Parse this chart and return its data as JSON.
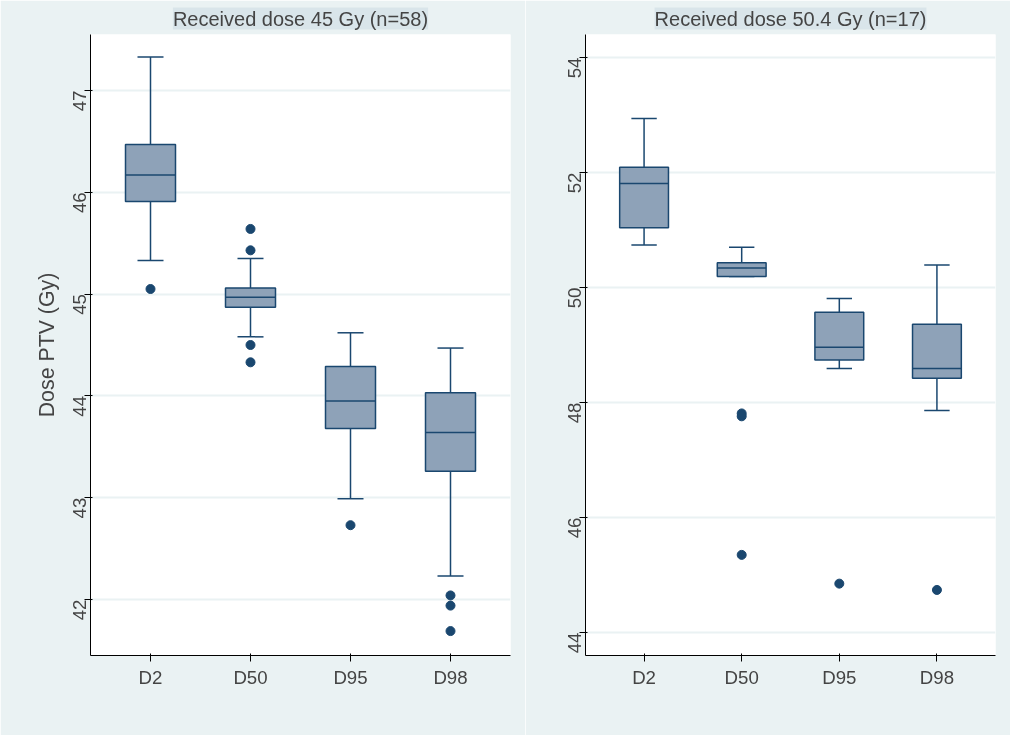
{
  "chart_data": [
    {
      "type": "box",
      "title": "Received dose 45 Gy (n=58)",
      "ylabel": "Dose PTV (Gy)",
      "categories": [
        "D2",
        "D50",
        "D95",
        "D98"
      ],
      "color": "#8ea2b8",
      "grid": "y",
      "ylim": [
        41.45,
        47.55
      ],
      "yticks": [
        42,
        43,
        44,
        45,
        46,
        47
      ],
      "boxes": [
        {
          "low": 45.33,
          "q1": 45.91,
          "median": 46.17,
          "q3": 46.47,
          "high": 47.33,
          "outliers": [
            45.05
          ]
        },
        {
          "low": 44.58,
          "q1": 44.87,
          "median": 44.97,
          "q3": 45.06,
          "high": 45.35,
          "outliers": [
            45.64,
            45.43,
            44.5,
            44.33
          ]
        },
        {
          "low": 42.99,
          "q1": 43.68,
          "median": 43.95,
          "q3": 44.29,
          "high": 44.62,
          "outliers": [
            42.73
          ]
        },
        {
          "low": 42.23,
          "q1": 43.26,
          "median": 43.64,
          "q3": 44.03,
          "high": 44.47,
          "outliers": [
            42.04,
            41.94,
            41.69
          ]
        }
      ]
    },
    {
      "type": "box",
      "title": "Received dose 50.4 Gy (n=17)",
      "categories": [
        "D2",
        "D50",
        "D95",
        "D98"
      ],
      "color": "#8ea2b8",
      "grid": "y",
      "ylim": [
        43.6,
        54.4
      ],
      "yticks": [
        44,
        46,
        48,
        50,
        52,
        54
      ],
      "boxes": [
        {
          "low": 50.74,
          "q1": 51.04,
          "median": 51.81,
          "q3": 52.09,
          "high": 52.94
        },
        {
          "low": 50.19,
          "q1": 50.19,
          "median": 50.34,
          "q3": 50.43,
          "high": 50.7,
          "outliers": [
            47.81,
            47.76,
            45.35
          ]
        },
        {
          "low": 48.59,
          "q1": 48.74,
          "median": 48.96,
          "q3": 49.57,
          "high": 49.81,
          "outliers": [
            44.85
          ]
        },
        {
          "low": 47.86,
          "q1": 48.42,
          "median": 48.59,
          "q3": 49.36,
          "high": 50.39,
          "outliers": [
            44.74
          ]
        }
      ]
    }
  ]
}
